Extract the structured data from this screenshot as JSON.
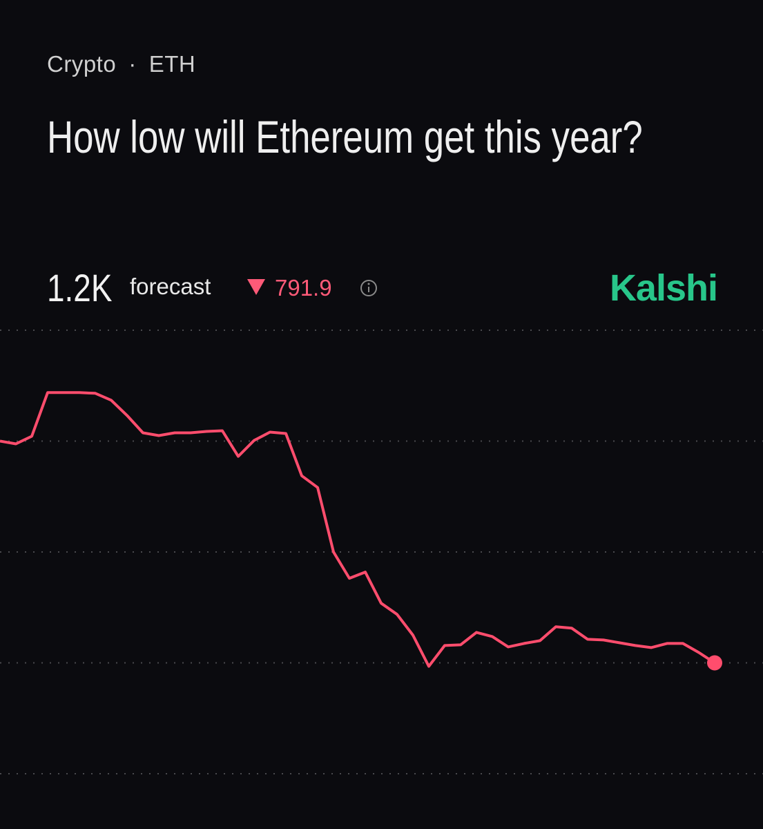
{
  "header": {
    "category": "Crypto",
    "separator": "·",
    "subcategory": "ETH",
    "title": "How low will Ethereum get this year?",
    "forecast_value": "1.2K",
    "forecast_label": "forecast",
    "change": "791.9",
    "brand": "Kalshi"
  },
  "chart_data": {
    "type": "line",
    "color": "#ff4d6d",
    "values": [
      2000,
      1990,
      2017.5,
      2175,
      2175,
      2175,
      2172.5,
      2147.5,
      2092.5,
      2030,
      2020,
      2030,
      2030,
      2035,
      2037.5,
      1945,
      2002.5,
      2032.5,
      2027.5,
      1875,
      1832.5,
      1600,
      1505,
      1527.5,
      1415,
      1375,
      1300,
      1187.5,
      1262.5,
      1265,
      1310,
      1295,
      1257.5,
      1270,
      1280,
      1330,
      1325,
      1285,
      1282.5,
      1272.5,
      1262.5,
      1255,
      1270,
      1270,
      1237.5,
      1200
    ],
    "ylim": [
      800,
      2400
    ],
    "yticks": [
      800,
      1200,
      1600,
      2000,
      2400
    ],
    "grid": true
  }
}
